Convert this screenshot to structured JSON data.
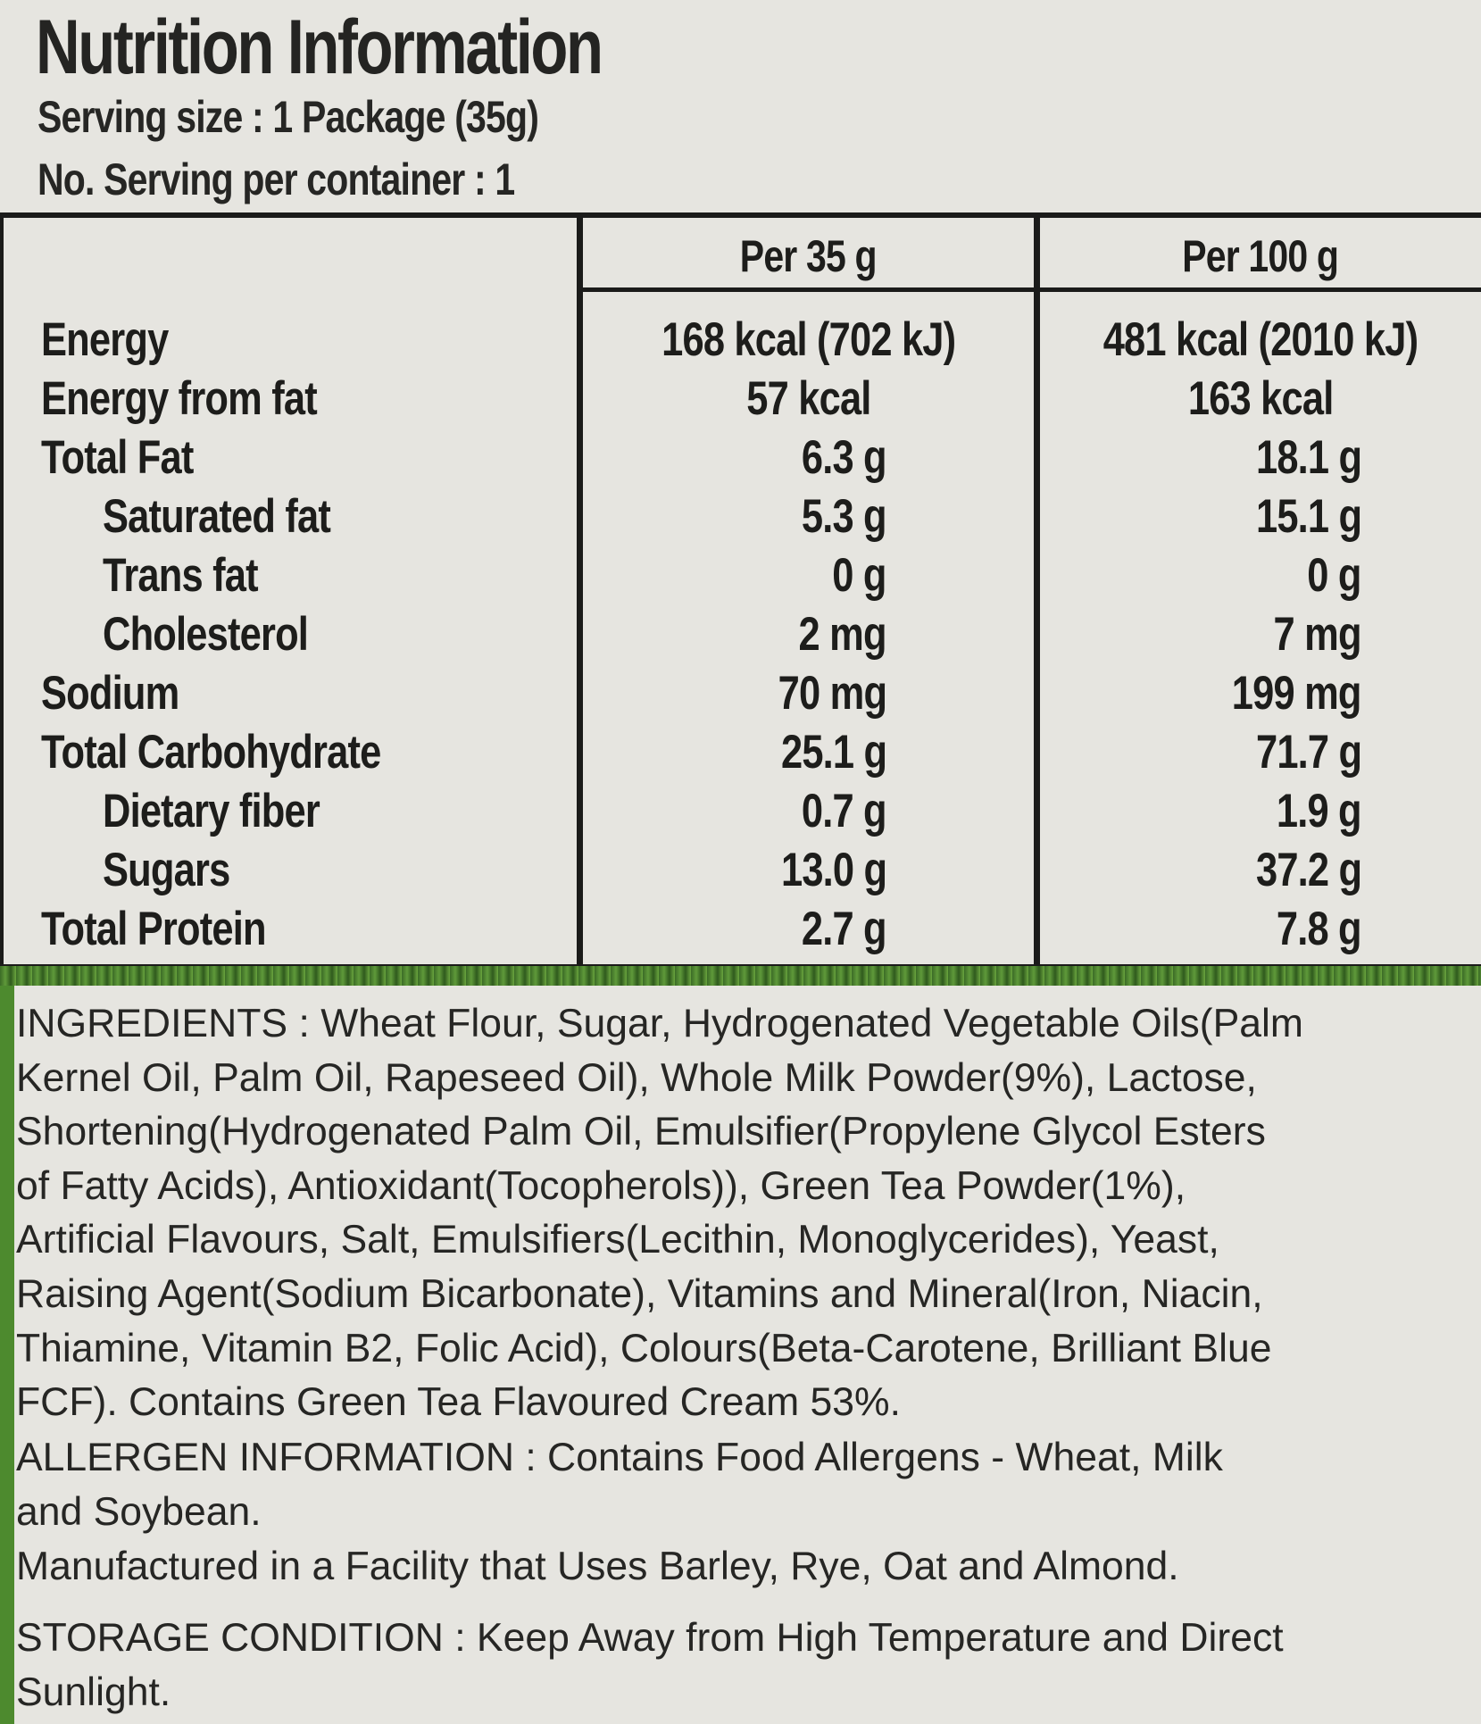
{
  "header": {
    "title": "Nutrition Information",
    "serving_size": "Serving size : 1 Package (35g)",
    "servings_per_container": "No. Serving per container : 1"
  },
  "table": {
    "columns": [
      "Per 35 g",
      "Per 100 g"
    ],
    "rows": [
      {
        "label": "Energy",
        "per_35g": "168 kcal (702 kJ)",
        "per_100g": "481 kcal (2010 kJ)",
        "indent": 0
      },
      {
        "label": "Energy from fat",
        "per_35g": "57 kcal",
        "per_100g": "163 kcal",
        "indent": 0
      },
      {
        "label": "Total Fat",
        "per_35g": "6.3 g",
        "per_100g": "18.1 g",
        "indent": 0
      },
      {
        "label": "Saturated fat",
        "per_35g": "5.3 g",
        "per_100g": "15.1 g",
        "indent": 1
      },
      {
        "label": "Trans fat",
        "per_35g": "0 g",
        "per_100g": "0 g",
        "indent": 1
      },
      {
        "label": "Cholesterol",
        "per_35g": "2 mg",
        "per_100g": "7 mg",
        "indent": 1
      },
      {
        "label": "Sodium",
        "per_35g": "70 mg",
        "per_100g": "199 mg",
        "indent": 0
      },
      {
        "label": "Total Carbohydrate",
        "per_35g": "25.1 g",
        "per_100g": "71.7 g",
        "indent": 0
      },
      {
        "label": "Dietary fiber",
        "per_35g": "0.7 g",
        "per_100g": "1.9 g",
        "indent": 1
      },
      {
        "label": "Sugars",
        "per_35g": "13.0 g",
        "per_100g": "37.2 g",
        "indent": 1
      },
      {
        "label": "Total Protein",
        "per_35g": "2.7 g",
        "per_100g": "7.8 g",
        "indent": 0
      }
    ]
  },
  "ingredients": "INGREDIENTS : Wheat Flour, Sugar, Hydrogenated Vegetable Oils(Palm\nKernel Oil, Palm Oil, Rapeseed Oil), Whole Milk Powder(9%), Lactose,\nShortening(Hydrogenated Palm Oil, Emulsifier(Propylene Glycol Esters\nof Fatty Acids), Antioxidant(Tocopherols)), Green Tea Powder(1%),\nArtificial Flavours, Salt, Emulsifiers(Lecithin, Monoglycerides), Yeast,\nRaising Agent(Sodium Bicarbonate), Vitamins and Mineral(Iron, Niacin,\nThiamine, Vitamin B2, Folic Acid), Colours(Beta-Carotene, Brilliant Blue\nFCF). Contains Green Tea Flavoured Cream 53%.",
  "allergen": "ALLERGEN INFORMATION : Contains Food Allergens - Wheat, Milk\nand Soybean.",
  "facility": "Manufactured in a Facility that Uses Barley, Rye, Oat and Almond.",
  "storage": "STORAGE CONDITION : Keep Away from High Temperature and Direct\nSunlight.",
  "colors": {
    "background": "#e6e5e0",
    "text": "#1d1d1b",
    "rules": "#1b1b1a",
    "green_band": "#4d8a2e"
  }
}
